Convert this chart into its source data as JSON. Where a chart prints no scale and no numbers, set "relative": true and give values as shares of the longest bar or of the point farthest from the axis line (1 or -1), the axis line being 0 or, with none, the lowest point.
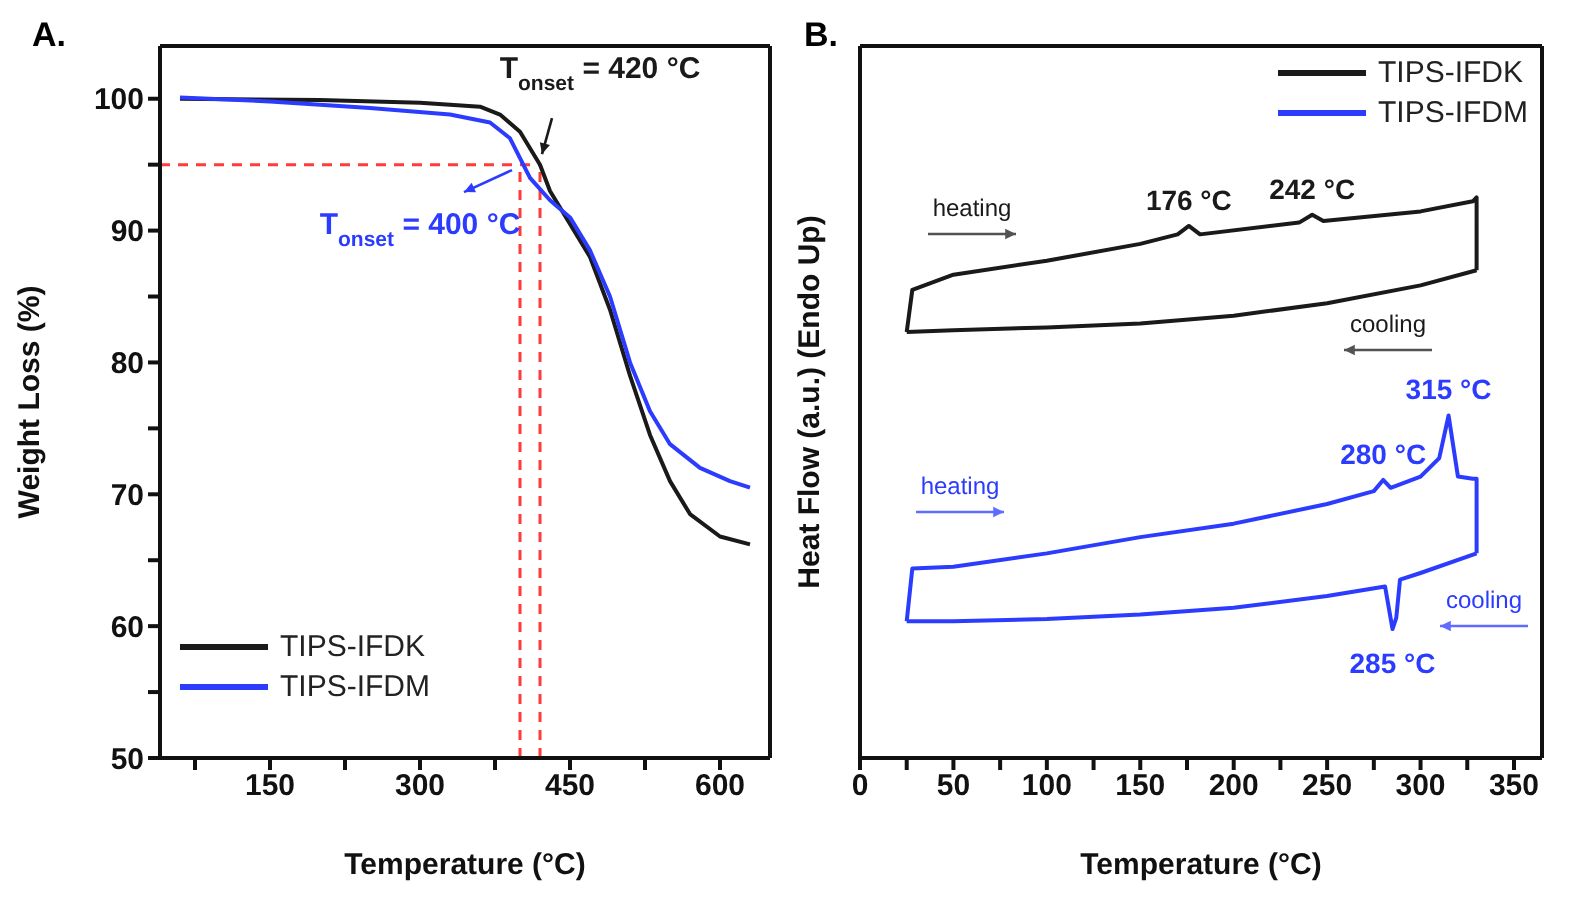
{
  "chart_data": [
    {
      "type": "line",
      "title": "A.",
      "xlabel": "Temperature (°C)",
      "ylabel": "Weight Loss (%)",
      "xlim": [
        40,
        650
      ],
      "ylim": [
        50,
        104
      ],
      "xticks": [
        {
          "value": 75,
          "label": null
        },
        150,
        {
          "value": 225,
          "label": null
        },
        300,
        {
          "value": 375,
          "label": null
        },
        450,
        {
          "value": 525,
          "label": null
        },
        600
      ],
      "yticks": [
        50,
        {
          "value": 55,
          "label": null
        },
        60,
        {
          "value": 65,
          "label": null
        },
        70,
        {
          "value": 75,
          "label": null
        },
        80,
        {
          "value": 85,
          "label": null
        },
        90,
        {
          "value": 95,
          "label": null
        },
        100
      ],
      "legend": "bottom left",
      "line_style": "solid",
      "marker": "none",
      "series": [
        {
          "name": "TIPS-IFDK",
          "color": "#1a1a1a",
          "x": [
            60,
            200,
            300,
            360,
            380,
            400,
            420,
            430,
            450,
            470,
            490,
            510,
            530,
            550,
            570,
            600,
            630
          ],
          "values": [
            100,
            99.9,
            99.7,
            99.4,
            98.8,
            97.5,
            95,
            93,
            90.5,
            88,
            84,
            79,
            74.5,
            71,
            68.5,
            66.8,
            66.2
          ]
        },
        {
          "name": "TIPS-IFDM",
          "color": "#2b3cff",
          "x": [
            60,
            150,
            250,
            330,
            370,
            390,
            400,
            410,
            430,
            450,
            470,
            490,
            510,
            530,
            550,
            580,
            610,
            630
          ],
          "values": [
            100.1,
            99.8,
            99.3,
            98.8,
            98.2,
            97,
            95.5,
            94,
            92.3,
            91,
            88.5,
            85,
            80,
            76.3,
            73.8,
            72,
            71,
            70.5
          ]
        }
      ],
      "ref_lines": [
        {
          "axis": "y",
          "value": 95,
          "color": "#ff3b3b",
          "line_style": "dashed"
        },
        {
          "axis": "x",
          "value": 400,
          "color": "#ff3b3b",
          "line_style": "dashed"
        },
        {
          "axis": "x",
          "value": 420,
          "color": "#ff3b3b",
          "line_style": "dashed"
        }
      ],
      "annotations": [
        {
          "text": "T$_{onset}$ = 420 °C",
          "x": 420,
          "y": 95.5
        },
        {
          "text": "T$_{onset}$ = 400 °C",
          "x": 400,
          "y": 95.5
        }
      ]
    },
    {
      "type": "line",
      "title": "B.",
      "xlabel": "Temperature (°C)",
      "ylabel": "Heat Flow (a.u.) (Endo Up)",
      "relative": true,
      "xlim": [
        0,
        365
      ],
      "xticks": [
        0,
        {
          "value": 25,
          "label": null
        },
        50,
        {
          "value": 75,
          "label": null
        },
        100,
        {
          "value": 125,
          "label": null
        },
        150,
        {
          "value": 175,
          "label": null
        },
        200,
        {
          "value": 225,
          "label": null
        },
        250,
        {
          "value": 275,
          "label": null
        },
        300,
        {
          "value": 325,
          "label": null
        },
        350
      ],
      "legend": "top right",
      "line_style": "solid",
      "marker": "none",
      "series": [
        {
          "name": "TIPS-IFDK",
          "color": "#1a1a1a",
          "x": [
            25,
            28,
            50,
            100,
            150,
            170,
            176,
            182,
            235,
            242,
            248,
            300,
            328,
            330,
            330
          ],
          "values": [
            0.76,
            0.835,
            0.862,
            0.887,
            0.917,
            0.934,
            0.949,
            0.934,
            0.955,
            0.969,
            0.958,
            0.975,
            0.993,
            1,
            0.87
          ]
        },
        {
          "color": "#1a1a1a",
          "x": [
            330,
            300,
            250,
            200,
            150,
            100,
            50,
            25
          ],
          "values": [
            0.87,
            0.843,
            0.811,
            0.789,
            0.775,
            0.768,
            0.763,
            0.76
          ]
        },
        {
          "name": "TIPS-IFDM",
          "color": "#2b3cff",
          "x": [
            25,
            28,
            50,
            100,
            150,
            200,
            250,
            275,
            280,
            284,
            300,
            310,
            315,
            320,
            328,
            330,
            330
          ],
          "values": [
            0.244,
            0.338,
            0.341,
            0.365,
            0.394,
            0.418,
            0.453,
            0.476,
            0.496,
            0.482,
            0.502,
            0.535,
            0.611,
            0.502,
            0.498,
            0.498,
            0.365
          ]
        },
        {
          "color": "#2b3cff",
          "x": [
            330,
            300,
            289,
            287,
            285,
            281,
            250,
            200,
            150,
            100,
            50,
            25
          ],
          "values": [
            0.365,
            0.33,
            0.318,
            0.25,
            0.23,
            0.306,
            0.289,
            0.268,
            0.256,
            0.248,
            0.244,
            0.244
          ]
        }
      ],
      "annotations": [
        {
          "text": "176 °C",
          "x": 176,
          "y": 0.949
        },
        {
          "text": "242 °C",
          "x": 242,
          "y": 0.969
        },
        {
          "text": "280 °C",
          "x": 280,
          "y": 0.496
        },
        {
          "text": "315 °C",
          "x": 315,
          "y": 0.611
        },
        {
          "text": "285 °C",
          "x": 285,
          "y": 0.23
        },
        "heating",
        "cooling",
        "heating",
        "cooling"
      ]
    }
  ]
}
